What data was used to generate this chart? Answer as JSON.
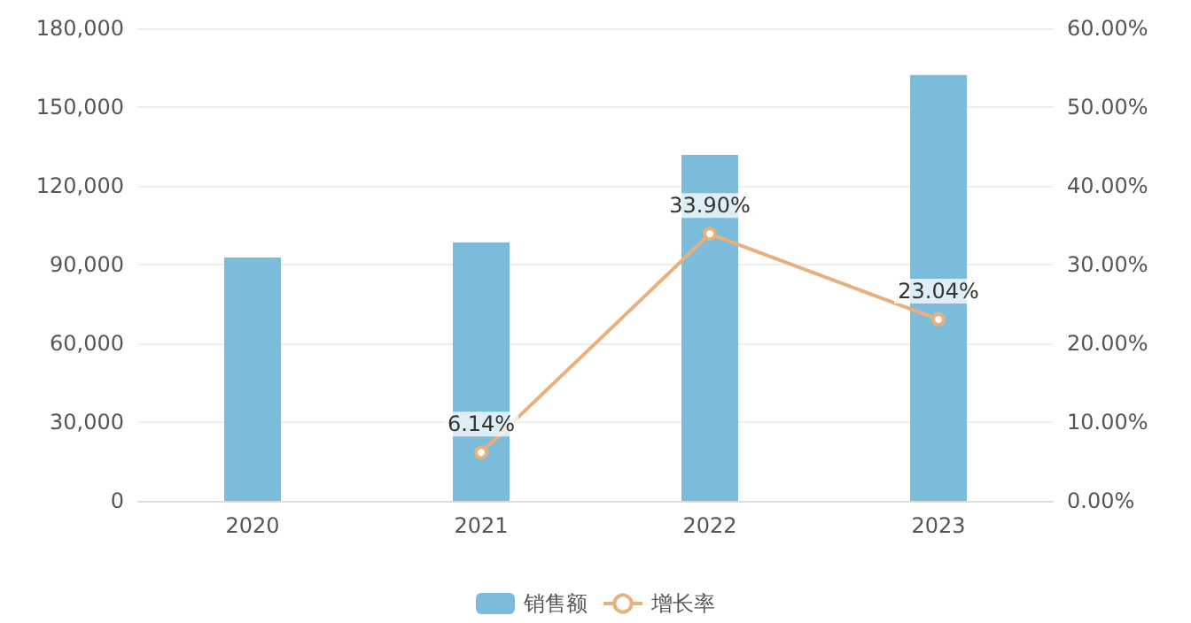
{
  "chart_data": {
    "type": "bar",
    "categories": [
      "2020",
      "2021",
      "2022",
      "2023"
    ],
    "series": [
      {
        "name": "销售额",
        "color": "#7bbcdb",
        "values": [
          92700,
          98400,
          131800,
          162200
        ]
      },
      {
        "name": "增长率",
        "type": "line",
        "axis": "y2",
        "color": "#e8b07c",
        "values": [
          null,
          6.14,
          33.9,
          23.04
        ],
        "value_labels": [
          null,
          "6.14%",
          "33.90%",
          "23.04%"
        ],
        "marker": "circle"
      }
    ],
    "ylim": [
      0,
      180000
    ],
    "yticks": [
      {
        "value": 0,
        "label": "0"
      },
      {
        "value": 30000,
        "label": "30,000"
      },
      {
        "value": 60000,
        "label": "60,000"
      },
      {
        "value": 90000,
        "label": "90,000"
      },
      {
        "value": 120000,
        "label": "120,000"
      },
      {
        "value": 150000,
        "label": "150,000"
      },
      {
        "value": 180000,
        "label": "180,000"
      }
    ],
    "y2lim": [
      0,
      60
    ],
    "y2ticks": [
      {
        "value": 0,
        "label": "0.00%"
      },
      {
        "value": 10,
        "label": "10.00%"
      },
      {
        "value": 20,
        "label": "20.00%"
      },
      {
        "value": 30,
        "label": "30.00%"
      },
      {
        "value": 40,
        "label": "40.00%"
      },
      {
        "value": 50,
        "label": "50.00%"
      },
      {
        "value": 60,
        "label": "60.00%"
      }
    ],
    "grid": "y",
    "legend": "bottom"
  }
}
